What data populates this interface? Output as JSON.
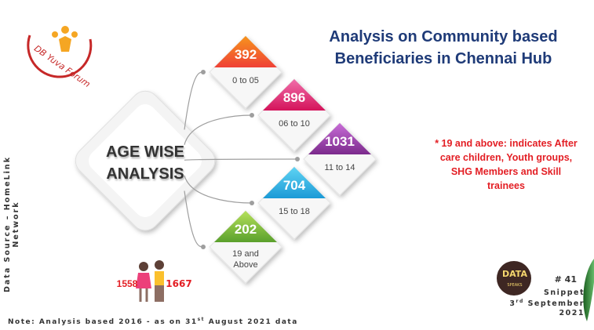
{
  "logo": {
    "text": "DB Yuva Forum"
  },
  "title": "Analysis on Community based Beneficiaries in Chennai Hub",
  "center_label": "AGE WISE ANALYSIS",
  "age_groups": [
    {
      "count": 392,
      "range": "0 to 05"
    },
    {
      "count": 896,
      "range": "06 to 10"
    },
    {
      "count": 1031,
      "range": "11 to 14"
    },
    {
      "count": 704,
      "range": "15 to 18"
    },
    {
      "count": 202,
      "range": "19 and Above"
    }
  ],
  "footnote": "* 19 and above: indicates After care children, Youth groups, SHG Members and Skill trainees",
  "gender": {
    "girls": 1558,
    "boys": 1667
  },
  "source": "Data Source – HomeLink Network",
  "note": {
    "text": "Note: Analysis based 2016 - as on 31",
    "sup": "st",
    "rest": " August 2021 data"
  },
  "badge": {
    "logo_title": "DATA",
    "logo_subtitle": "SPEAKS",
    "number": "# 41",
    "word": "Snippet",
    "day": "3",
    "day_sup": "rd",
    "month": "September",
    "year": "2021"
  }
}
